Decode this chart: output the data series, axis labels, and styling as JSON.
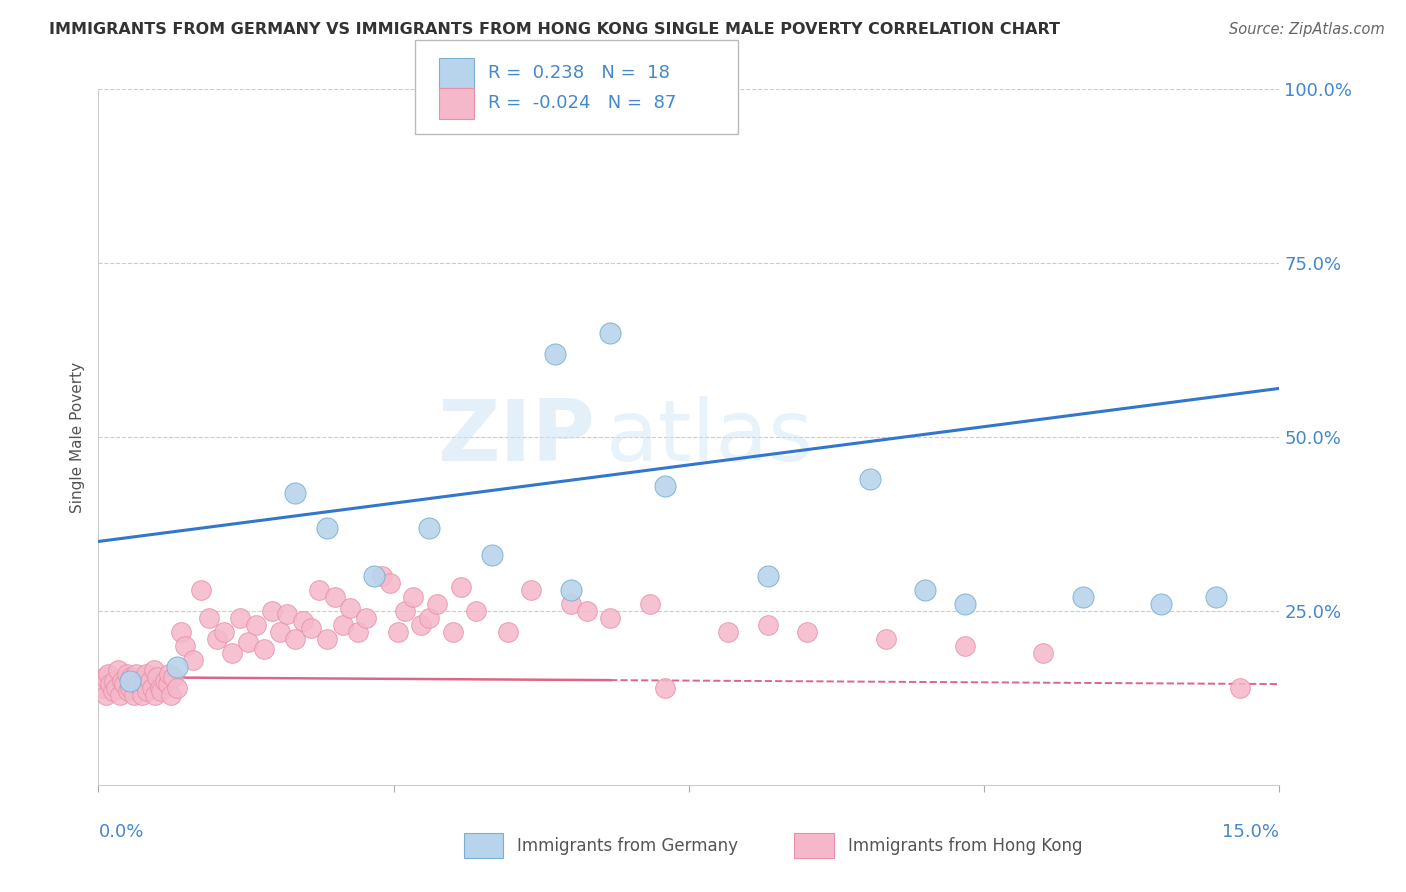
{
  "title": "IMMIGRANTS FROM GERMANY VS IMMIGRANTS FROM HONG KONG SINGLE MALE POVERTY CORRELATION CHART",
  "source": "Source: ZipAtlas.com",
  "ylabel": "Single Male Poverty",
  "xlim": [
    0.0,
    15.0
  ],
  "ylim": [
    0.0,
    100.0
  ],
  "yticks": [
    25.0,
    50.0,
    75.0,
    100.0
  ],
  "germany_color": "#b8d4ec",
  "germany_edge": "#7aafd4",
  "germany_R": 0.238,
  "germany_N": 18,
  "germany_line_color": "#3377cc",
  "hongkong_color": "#f5b8cb",
  "hongkong_edge": "#e890a8",
  "hongkong_R": -0.024,
  "hongkong_N": 87,
  "hongkong_line_color": "#dd6688",
  "watermark_zip": "ZIP",
  "watermark_atlas": "atlas",
  "germany_x": [
    0.4,
    1.0,
    2.5,
    2.9,
    3.5,
    4.2,
    5.0,
    5.8,
    6.5,
    7.2,
    8.5,
    9.8,
    11.0,
    12.5,
    13.5,
    14.2,
    10.5,
    6.0
  ],
  "germany_y": [
    15.0,
    17.0,
    42.0,
    37.0,
    30.0,
    37.0,
    33.0,
    62.0,
    65.0,
    43.0,
    30.0,
    44.0,
    26.0,
    27.0,
    26.0,
    27.0,
    28.0,
    28.0
  ],
  "hongkong_x": [
    0.05,
    0.08,
    0.1,
    0.12,
    0.15,
    0.18,
    0.2,
    0.22,
    0.25,
    0.28,
    0.3,
    0.33,
    0.36,
    0.38,
    0.4,
    0.42,
    0.45,
    0.48,
    0.5,
    0.53,
    0.55,
    0.58,
    0.6,
    0.62,
    0.65,
    0.68,
    0.7,
    0.72,
    0.75,
    0.78,
    0.8,
    0.85,
    0.88,
    0.9,
    0.92,
    0.95,
    1.0,
    1.05,
    1.1,
    1.2,
    1.3,
    1.4,
    1.5,
    1.6,
    1.7,
    1.8,
    1.9,
    2.0,
    2.1,
    2.2,
    2.3,
    2.4,
    2.5,
    2.6,
    2.7,
    2.8,
    2.9,
    3.0,
    3.1,
    3.2,
    3.3,
    3.4,
    3.6,
    3.7,
    3.8,
    3.9,
    4.0,
    4.1,
    4.2,
    4.3,
    4.5,
    4.6,
    4.8,
    5.2,
    5.5,
    6.0,
    6.2,
    6.5,
    7.0,
    7.2,
    8.0,
    8.5,
    9.0,
    10.0,
    11.0,
    12.0,
    14.5
  ],
  "hongkong_y": [
    14.0,
    15.5,
    13.0,
    16.0,
    14.5,
    13.5,
    15.0,
    14.0,
    16.5,
    13.0,
    15.0,
    14.5,
    16.0,
    13.5,
    14.0,
    15.5,
    13.0,
    16.0,
    14.5,
    15.0,
    13.0,
    14.5,
    16.0,
    13.5,
    15.0,
    14.0,
    16.5,
    13.0,
    15.5,
    14.0,
    13.5,
    15.0,
    14.5,
    16.0,
    13.0,
    15.5,
    14.0,
    22.0,
    20.0,
    18.0,
    28.0,
    24.0,
    21.0,
    22.0,
    19.0,
    24.0,
    20.5,
    23.0,
    19.5,
    25.0,
    22.0,
    24.5,
    21.0,
    23.5,
    22.5,
    28.0,
    21.0,
    27.0,
    23.0,
    25.5,
    22.0,
    24.0,
    30.0,
    29.0,
    22.0,
    25.0,
    27.0,
    23.0,
    24.0,
    26.0,
    22.0,
    28.5,
    25.0,
    22.0,
    28.0,
    26.0,
    25.0,
    24.0,
    26.0,
    14.0,
    22.0,
    23.0,
    22.0,
    21.0,
    20.0,
    19.0,
    14.0
  ],
  "background_color": "#ffffff",
  "grid_color": "#cccccc",
  "title_color": "#333333",
  "axis_label_color": "#4488cc"
}
